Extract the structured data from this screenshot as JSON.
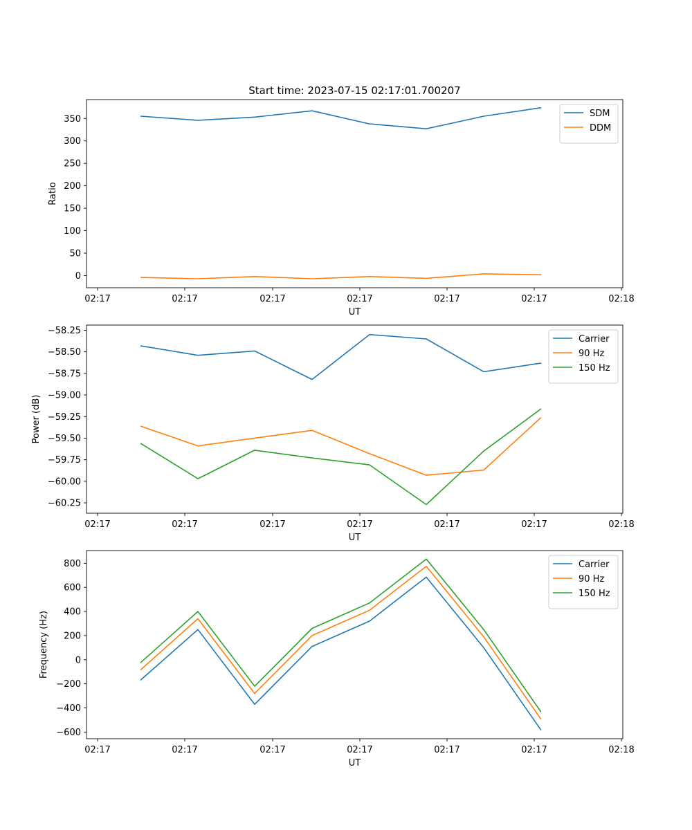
{
  "chart_data": [
    {
      "type": "line",
      "title": "Start time: 2023-07-15 02:17:01.700207",
      "xlabel": "UT",
      "ylabel": "Ratio",
      "x_tick_labels": [
        "02:17",
        "02:17",
        "02:17",
        "02:17",
        "02:17",
        "02:17",
        "02:18"
      ],
      "y_ticks": [
        0,
        50,
        100,
        150,
        200,
        250,
        300,
        350
      ],
      "y_tick_labels": [
        "0",
        "50",
        "100",
        "150",
        "200",
        "250",
        "300",
        "350"
      ],
      "ylim": [
        -27,
        392
      ],
      "legend": "top-right",
      "series": [
        {
          "name": "SDM",
          "color": "#1f77b4",
          "values": [
            355,
            346,
            353,
            367,
            338,
            327,
            355,
            374
          ]
        },
        {
          "name": "DDM",
          "color": "#ff7f0e",
          "values": [
            -4,
            -7,
            -2,
            -7,
            -2,
            -6,
            4,
            2
          ]
        }
      ]
    },
    {
      "type": "line",
      "title": "",
      "xlabel": "UT",
      "ylabel": "Power (dB)",
      "x_tick_labels": [
        "02:17",
        "02:17",
        "02:17",
        "02:17",
        "02:17",
        "02:17",
        "02:18"
      ],
      "y_ticks": [
        -60.25,
        -60.0,
        -59.75,
        -59.5,
        -59.25,
        -59.0,
        -58.75,
        -58.5,
        -58.25
      ],
      "y_tick_labels": [
        "−60.25",
        "−60.00",
        "−59.75",
        "−59.50",
        "−59.25",
        "−59.00",
        "−58.75",
        "−58.50",
        "−58.25"
      ],
      "ylim": [
        -60.37,
        -58.19
      ],
      "legend": "top-right",
      "series": [
        {
          "name": "Carrier",
          "color": "#1f77b4",
          "values": [
            -58.43,
            -58.54,
            -58.49,
            -58.82,
            -58.3,
            -58.35,
            -58.73,
            -58.63
          ]
        },
        {
          "name": "90 Hz",
          "color": "#ff7f0e",
          "values": [
            -59.36,
            -59.59,
            -59.5,
            -59.41,
            -59.68,
            -59.93,
            -59.87,
            -59.26
          ]
        },
        {
          "name": "150 Hz",
          "color": "#2ca02c",
          "values": [
            -59.56,
            -59.97,
            -59.64,
            -59.73,
            -59.81,
            -60.27,
            -59.65,
            -59.16
          ]
        }
      ]
    },
    {
      "type": "line",
      "title": "",
      "xlabel": "UT",
      "ylabel": "Frequency (Hz)",
      "x_tick_labels": [
        "02:17",
        "02:17",
        "02:17",
        "02:17",
        "02:17",
        "02:17",
        "02:18"
      ],
      "y_ticks": [
        -600,
        -400,
        -200,
        0,
        200,
        400,
        600,
        800
      ],
      "y_tick_labels": [
        "−600",
        "−400",
        "−200",
        "0",
        "200",
        "400",
        "600",
        "800"
      ],
      "ylim": [
        -655,
        905
      ],
      "legend": "top-right",
      "series": [
        {
          "name": "Carrier",
          "color": "#1f77b4",
          "values": [
            -170,
            250,
            -370,
            110,
            320,
            685,
            100,
            -585
          ]
        },
        {
          "name": "90 Hz",
          "color": "#ff7f0e",
          "values": [
            -85,
            340,
            -280,
            200,
            410,
            775,
            190,
            -495
          ]
        },
        {
          "name": "150 Hz",
          "color": "#2ca02c",
          "values": [
            -25,
            400,
            -220,
            260,
            470,
            835,
            250,
            -435
          ]
        }
      ]
    }
  ]
}
